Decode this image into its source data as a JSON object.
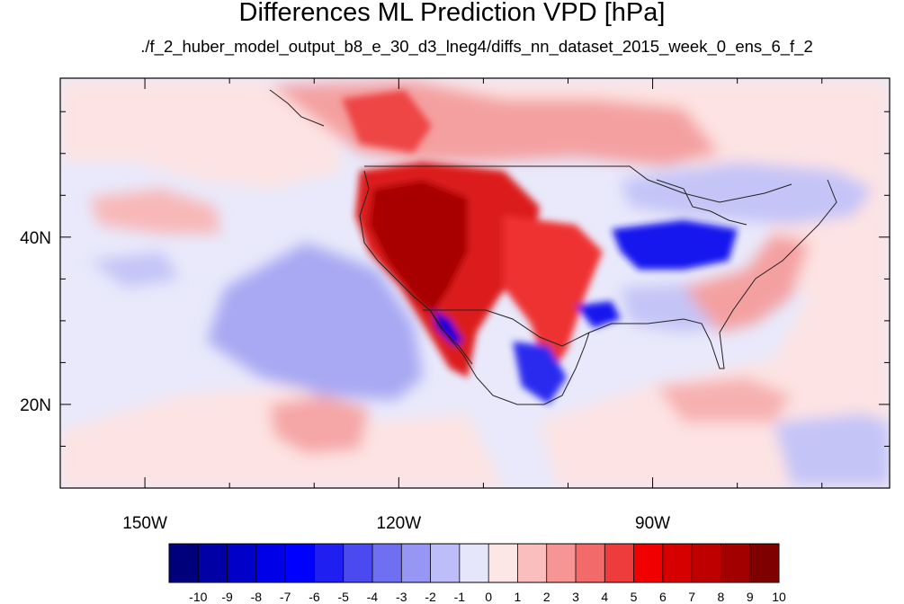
{
  "title": "Differences ML Prediction VPD [hPa]",
  "subtitle": "./f_2_huber_model_output_b8_e_30_d3_lneg4/diffs_nn_dataset_2015_week_0_ens_6_f_2",
  "map": {
    "lon_range": [
      -160,
      -62
    ],
    "lat_range": [
      10,
      59
    ],
    "lon_ticks": [
      {
        "value": -150,
        "label": "150W"
      },
      {
        "value": -120,
        "label": "120W"
      },
      {
        "value": -90,
        "label": "90W"
      }
    ],
    "lat_ticks": [
      {
        "value": 40,
        "label": "40N"
      },
      {
        "value": 20,
        "label": "20N"
      }
    ]
  },
  "colorbar": {
    "labels": [
      "-10",
      "-9",
      "-8",
      "-7",
      "-6",
      "-5",
      "-4",
      "-3",
      "-2",
      "-1",
      "0",
      "1",
      "2",
      "3",
      "4",
      "5",
      "6",
      "7",
      "8",
      "9",
      "10"
    ],
    "colors": [
      "#00007a",
      "#0000a4",
      "#0000c8",
      "#0000e8",
      "#0000ff",
      "#1f1ff2",
      "#4a4af0",
      "#6f6ff2",
      "#9696f5",
      "#bdbdf9",
      "#e6e6fa",
      "#fde6e6",
      "#fbbebe",
      "#f79494",
      "#f26a6a",
      "#ee3c3c",
      "#f00000",
      "#d60000",
      "#be0000",
      "#a20000",
      "#7e0000"
    ]
  }
}
